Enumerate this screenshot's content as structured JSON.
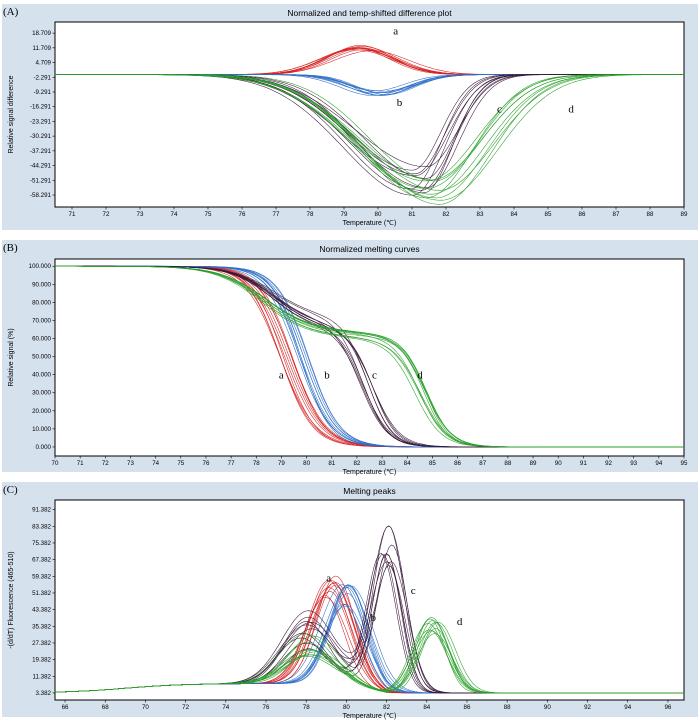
{
  "chart_data": [
    {
      "panel_label": "(A)",
      "type": "line",
      "title": "Normalized and temp-shifted difference plot",
      "xlabel": "Temperature",
      "xunit": "(℃)",
      "ylabel": "Relative signal difference",
      "xlim": [
        70.5,
        89
      ],
      "ylim": [
        -64,
        24
      ],
      "x_ticks": [
        "71",
        "72",
        "73",
        "74",
        "75",
        "76",
        "77",
        "78",
        "79",
        "80",
        "81",
        "82",
        "83",
        "84",
        "85",
        "86",
        "87",
        "88",
        "89"
      ],
      "y_ticks": [
        "18.709",
        "11.709",
        "4.709",
        "-2.291",
        "-9.291",
        "-16.291",
        "-23.291",
        "-30.291",
        "-37.291",
        "-44.291",
        "-51.291",
        "-58.291"
      ],
      "annotations": [
        {
          "text": "a",
          "x": 80.45,
          "y": 18
        },
        {
          "text": "b",
          "x": 80.55,
          "y": -16
        },
        {
          "text": "c",
          "x": 83.5,
          "y": -19
        },
        {
          "text": "d",
          "x": 85.6,
          "y": -19
        }
      ],
      "series": [
        {
          "group": "a",
          "color": "#d62020",
          "shape": "gauss",
          "baseline": -1,
          "amp": 13,
          "center": 79.6,
          "width": 1.0,
          "n": 10
        },
        {
          "group": "b",
          "color": "#2f6fc8",
          "shape": "gauss",
          "baseline": -1,
          "amp": -9,
          "center": 80.0,
          "width": 0.9,
          "n": 10
        },
        {
          "group": "c",
          "color": "#3a1a3a",
          "shape": "skew",
          "baseline": -1,
          "amp": -50,
          "center": 81.2,
          "wl": 2.0,
          "wr": 0.9,
          "n": 10
        },
        {
          "group": "d",
          "color": "#2aa02a",
          "shape": "skew",
          "baseline": -1,
          "amp": -57,
          "center": 81.6,
          "wl": 2.1,
          "wr": 1.5,
          "n": 10
        }
      ]
    },
    {
      "panel_label": "(B)",
      "type": "line",
      "title": "Normalized melting curves",
      "xlabel": "Temperature",
      "xunit": "(℃)",
      "ylabel": "Relative signal (%)",
      "xlim": [
        70,
        95
      ],
      "ylim": [
        -5,
        104
      ],
      "x_ticks": [
        "70",
        "71",
        "72",
        "73",
        "74",
        "75",
        "76",
        "77",
        "78",
        "79",
        "80",
        "81",
        "82",
        "83",
        "84",
        "85",
        "86",
        "87",
        "88",
        "89",
        "90",
        "91",
        "92",
        "93",
        "94",
        "95"
      ],
      "y_ticks": [
        "100.000",
        "90.000",
        "80.000",
        "70.000",
        "60.000",
        "50.000",
        "40.000",
        "30.000",
        "20.000",
        "10.000",
        "0.000"
      ],
      "annotations": [
        {
          "text": "a",
          "x": 78.9,
          "y": 38
        },
        {
          "text": "b",
          "x": 80.7,
          "y": 38
        },
        {
          "text": "c",
          "x": 82.6,
          "y": 38
        },
        {
          "text": "d",
          "x": 84.4,
          "y": 38
        }
      ],
      "series": [
        {
          "group": "a",
          "color": "#d62020",
          "shape": "sigmoid",
          "t1": 79.2,
          "k1": 0.65,
          "n": 10
        },
        {
          "group": "b",
          "color": "#2f6fc8",
          "shape": "sigmoid",
          "t1": 79.8,
          "k1": 0.6,
          "n": 10
        },
        {
          "group": "c",
          "color": "#3a1a3a",
          "shape": "two-step",
          "t1": 78.6,
          "k1": 0.8,
          "t2": 82.4,
          "k2": 0.5,
          "plateau": 70,
          "n": 10
        },
        {
          "group": "d",
          "color": "#2aa02a",
          "shape": "two-step",
          "t1": 78.2,
          "k1": 0.9,
          "t2": 84.5,
          "k2": 0.5,
          "plateau": 64,
          "n": 10
        }
      ]
    },
    {
      "panel_label": "(C)",
      "type": "line",
      "title": "Melting peaks",
      "xlabel": "Temperature",
      "xunit": "(℃)",
      "ylabel": "-(d/dT) Fluorescence (465-510)",
      "xlim": [
        65.5,
        96.8
      ],
      "ylim": [
        0,
        96
      ],
      "x_ticks": [
        "66",
        "68",
        "70",
        "72",
        "74",
        "76",
        "78",
        "80",
        "82",
        "84",
        "86",
        "88",
        "90",
        "92",
        "94",
        "96"
      ],
      "y_ticks": [
        "91.382",
        "83.382",
        "75.382",
        "67.382",
        "59.382",
        "51.382",
        "43.382",
        "35.382",
        "27.382",
        "19.382",
        "11.382",
        "3.382"
      ],
      "annotations": [
        {
          "text": "a",
          "x": 79.0,
          "y": 57
        },
        {
          "text": "b",
          "x": 81.2,
          "y": 38
        },
        {
          "text": "c",
          "x": 83.2,
          "y": 51
        },
        {
          "text": "d",
          "x": 85.5,
          "y": 36
        }
      ],
      "series": [
        {
          "group": "a",
          "color": "#d62020",
          "shape": "peak",
          "peaks": [
            [
              79.2,
              45,
              1.0
            ]
          ],
          "n": 10
        },
        {
          "group": "b",
          "color": "#2f6fc8",
          "shape": "peak",
          "peaks": [
            [
              80.0,
              43,
              1.0
            ]
          ],
          "n": 10
        },
        {
          "group": "c",
          "color": "#3a1a3a",
          "shape": "peak",
          "peaks": [
            [
              78.0,
              28,
              1.2
            ],
            [
              82.0,
              72,
              0.75
            ]
          ],
          "n": 10
        },
        {
          "group": "d",
          "color": "#2aa02a",
          "shape": "peak",
          "peaks": [
            [
              78.2,
              18,
              1.2
            ],
            [
              84.3,
              32,
              0.8
            ]
          ],
          "n": 10
        }
      ]
    }
  ]
}
